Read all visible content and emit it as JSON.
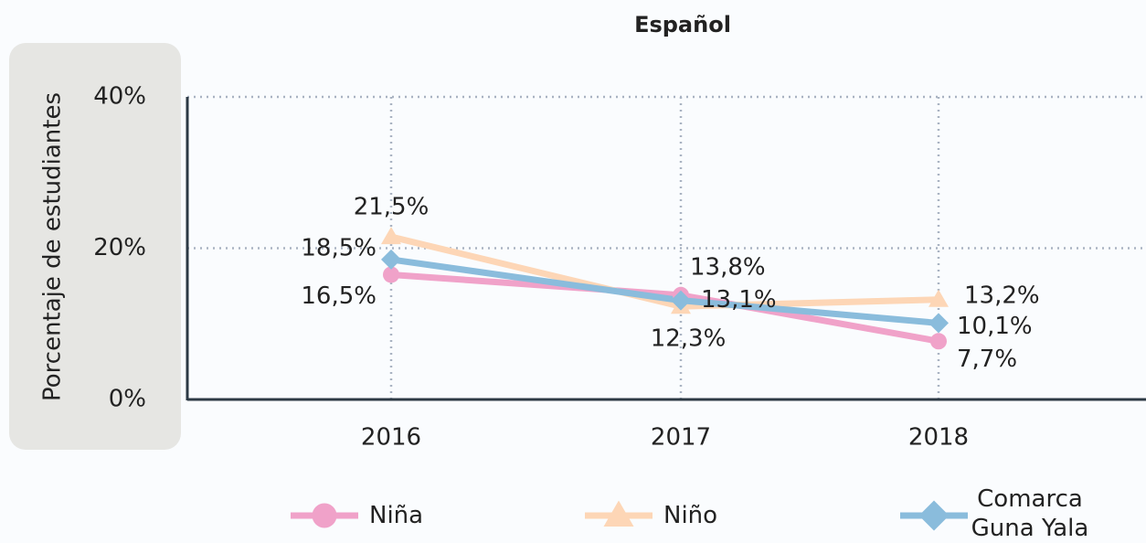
{
  "chart_data": {
    "type": "line",
    "title": "Español",
    "y_label": "Porcentaje de estudiantes",
    "categories": [
      "2016",
      "2017",
      "2018"
    ],
    "series": [
      {
        "name": "Niña",
        "color": "#f0a2c9",
        "marker": "circle",
        "values": [
          16.5,
          13.8,
          7.7
        ],
        "value_labels": [
          "16,5%",
          "13,8%",
          "7,7%"
        ]
      },
      {
        "name": "Niño",
        "color": "#fdd6b6",
        "marker": "triangle",
        "values": [
          21.5,
          12.3,
          13.2
        ],
        "value_labels": [
          "21,5%",
          "12,3%",
          "13,2%"
        ]
      },
      {
        "name": "Comarca Guna Yala",
        "color": "#8abcdc",
        "marker": "diamond",
        "values": [
          18.5,
          13.1,
          10.1
        ],
        "value_labels": [
          "18,5%",
          "13,1%",
          "10,1%"
        ]
      }
    ],
    "ylim": [
      0,
      40
    ],
    "yticks": [
      {
        "value": 0,
        "label": "0%"
      },
      {
        "value": 20,
        "label": "20%"
      },
      {
        "value": 40,
        "label": "40%"
      }
    ],
    "grid": true
  }
}
